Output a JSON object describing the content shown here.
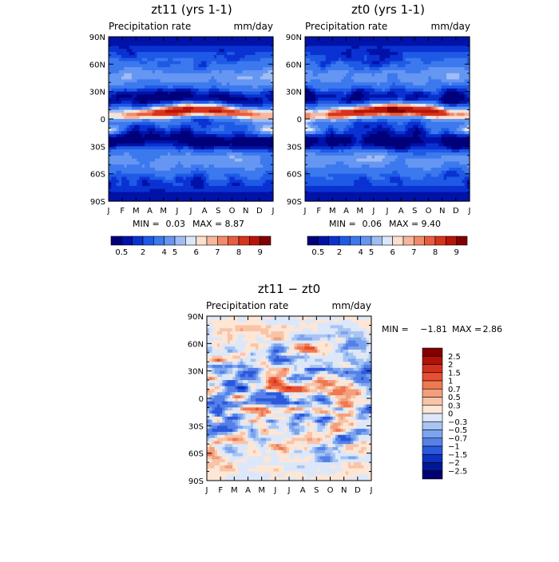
{
  "chart_data": [
    {
      "type": "heatmap",
      "title": "zt11 (yrs 1-1)",
      "subtitle_left": "Precipitation rate",
      "subtitle_right": "mm/day",
      "x_ticks": [
        "J",
        "F",
        "M",
        "A",
        "M",
        "J",
        "J",
        "A",
        "S",
        "O",
        "N",
        "D",
        "J"
      ],
      "y_ticks": [
        "90N",
        "60N",
        "30N",
        "0",
        "30S",
        "60S",
        "90S"
      ],
      "min_label": "MIN =",
      "min_value": "0.03",
      "max_label": "MAX =",
      "max_value": "8.87",
      "colorbar_labels": [
        "0.5",
        "2",
        "4",
        "5",
        "6",
        "7",
        "8",
        "9"
      ],
      "colors": [
        "#00007a",
        "#0012a8",
        "#0a32d2",
        "#1e5ae6",
        "#3c78ee",
        "#6496f2",
        "#a0bcf4",
        "#dce8fa",
        "#fde0cc",
        "#f8b69a",
        "#f28a6c",
        "#ea5c40",
        "#d8341c",
        "#b81408",
        "#820000"
      ]
    },
    {
      "type": "heatmap",
      "title": "zt0 (yrs 1-1)",
      "subtitle_left": "Precipitation rate",
      "subtitle_right": "mm/day",
      "x_ticks": [
        "J",
        "F",
        "M",
        "A",
        "M",
        "J",
        "J",
        "A",
        "S",
        "O",
        "N",
        "D",
        "J"
      ],
      "y_ticks": [
        "90N",
        "60N",
        "30N",
        "0",
        "30S",
        "60S",
        "90S"
      ],
      "min_label": "MIN =",
      "min_value": "0.06",
      "max_label": "MAX =",
      "max_value": "9.40",
      "colorbar_labels": [
        "0.5",
        "2",
        "4",
        "5",
        "6",
        "7",
        "8",
        "9"
      ],
      "colors": [
        "#00007a",
        "#0012a8",
        "#0a32d2",
        "#1e5ae6",
        "#3c78ee",
        "#6496f2",
        "#a0bcf4",
        "#dce8fa",
        "#fde0cc",
        "#f8b69a",
        "#f28a6c",
        "#ea5c40",
        "#d8341c",
        "#b81408",
        "#820000"
      ]
    },
    {
      "type": "heatmap",
      "title": "zt11 − zt0",
      "subtitle_left": "Precipitation rate",
      "subtitle_right": "mm/day",
      "x_ticks": [
        "J",
        "F",
        "M",
        "A",
        "M",
        "J",
        "J",
        "A",
        "S",
        "O",
        "N",
        "D",
        "J"
      ],
      "y_ticks": [
        "90N",
        "60N",
        "30N",
        "0",
        "30S",
        "60S",
        "90S"
      ],
      "min_label": "MIN =",
      "min_value": "−1.81",
      "max_label": "MAX =",
      "max_value": "2.86",
      "colorbar_labels": [
        "2.5",
        "2",
        "1.5",
        "1",
        "0.7",
        "0.5",
        "0.3",
        "0",
        "−0.3",
        "−0.5",
        "−0.7",
        "−1",
        "−1.5",
        "−2",
        "−2.5"
      ],
      "colors": [
        "#820000",
        "#b01208",
        "#d2301c",
        "#e65030",
        "#f07850",
        "#f49e7c",
        "#f8c4a8",
        "#fde6d6",
        "#dce8fa",
        "#a8c4f2",
        "#7ca4ee",
        "#5480e8",
        "#2c58dc",
        "#0c30c0",
        "#001896",
        "#000070"
      ]
    }
  ]
}
